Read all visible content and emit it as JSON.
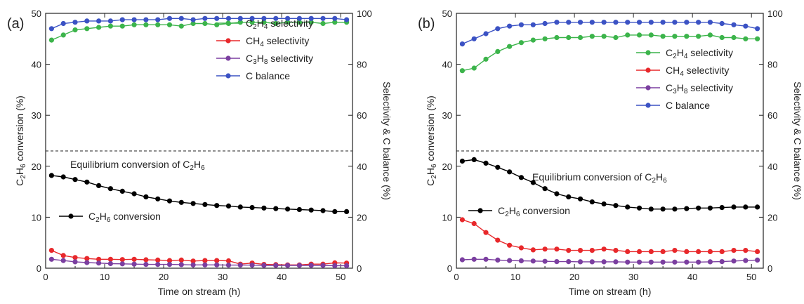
{
  "chart_data": [
    {
      "type": "line",
      "panel_label": "(a)",
      "xlabel": "Time on stream (h)",
      "ylabel": "C2H6 conversion (%)",
      "ylabel_parts": [
        [
          "C",
          ""
        ],
        [
          "2",
          "sub"
        ],
        [
          "H",
          ""
        ],
        [
          "6",
          "sub"
        ],
        [
          " conversion (%)",
          ""
        ]
      ],
      "y2label": "Selectivity & C balance (%)",
      "xlim": [
        0,
        52
      ],
      "ylim": [
        0,
        50
      ],
      "y2lim": [
        0,
        100
      ],
      "xticks": [
        "0",
        "10",
        "20",
        "30",
        "40",
        "50"
      ],
      "yticks": [
        "0",
        "10",
        "20",
        "30",
        "40",
        "50"
      ],
      "y2ticks": [
        "0",
        "20",
        "40",
        "60",
        "80",
        "100"
      ],
      "equilibrium": {
        "value": 23,
        "label": "Equilibrium conversion of C2H6",
        "label_parts": [
          [
            "Equilibrium conversion of C",
            ""
          ],
          [
            "2",
            "sub"
          ],
          [
            "H",
            ""
          ],
          [
            "6",
            "sub"
          ]
        ]
      },
      "x": [
        1,
        3,
        5,
        7,
        9,
        11,
        13,
        15,
        17,
        19,
        21,
        23,
        25,
        27,
        29,
        31,
        33,
        35,
        37,
        39,
        41,
        43,
        45,
        47,
        49,
        51
      ],
      "series": [
        {
          "name": "C2H6 conversion",
          "name_parts": [
            [
              "C",
              ""
            ],
            [
              "2",
              "sub"
            ],
            [
              "H",
              ""
            ],
            [
              "6",
              "sub"
            ],
            [
              " conversion",
              ""
            ]
          ],
          "axis": "left",
          "color": "#000000",
          "values": [
            18.2,
            17.9,
            17.4,
            16.9,
            16.2,
            15.6,
            15.1,
            14.6,
            14.0,
            13.6,
            13.2,
            12.9,
            12.7,
            12.5,
            12.3,
            12.2,
            12.0,
            11.9,
            11.8,
            11.7,
            11.6,
            11.5,
            11.4,
            11.3,
            11.1,
            11.1
          ]
        },
        {
          "name": "C2H4 selectivity",
          "name_parts": [
            [
              "C",
              ""
            ],
            [
              "2",
              "sub"
            ],
            [
              "H",
              ""
            ],
            [
              "4",
              "sub"
            ],
            [
              " selectivity",
              ""
            ]
          ],
          "axis": "right",
          "color": "#3cb44b",
          "values": [
            89.5,
            91.5,
            93.5,
            94.0,
            94.5,
            95.0,
            95.0,
            95.5,
            95.5,
            95.5,
            95.5,
            95.0,
            96.0,
            96.0,
            95.5,
            96.0,
            96.5,
            96.5,
            96.5,
            96.0,
            96.5,
            96.5,
            96.5,
            96.0,
            96.5,
            96.5
          ]
        },
        {
          "name": "CH4 selectivity",
          "name_parts": [
            [
              "CH",
              ""
            ],
            [
              "4",
              "sub"
            ],
            [
              " selectivity",
              ""
            ]
          ],
          "axis": "right",
          "color": "#e8282b",
          "values": [
            7.0,
            5.0,
            4.2,
            3.8,
            3.5,
            3.5,
            3.4,
            3.5,
            3.3,
            3.2,
            3.0,
            3.2,
            2.8,
            3.0,
            3.0,
            2.9,
            1.6,
            2.0,
            1.5,
            1.4,
            1.3,
            1.3,
            1.6,
            1.6,
            2.1,
            2.0
          ]
        },
        {
          "name": "C3H8 selectivity",
          "name_parts": [
            [
              "C",
              ""
            ],
            [
              "3",
              "sub"
            ],
            [
              "H",
              ""
            ],
            [
              "8",
              "sub"
            ],
            [
              " selectivity",
              ""
            ]
          ],
          "axis": "right",
          "color": "#7b3fa0",
          "values": [
            3.5,
            3.0,
            2.5,
            2.2,
            2.0,
            1.8,
            1.7,
            1.6,
            1.5,
            1.5,
            1.5,
            1.4,
            1.3,
            1.3,
            1.3,
            1.2,
            1.2,
            1.2,
            1.1,
            1.1,
            1.1,
            1.1,
            1.1,
            1.1,
            1.0,
            1.0
          ]
        },
        {
          "name": "C balance",
          "name_parts": [
            [
              "C balance",
              ""
            ]
          ],
          "axis": "right",
          "color": "#3b52c4",
          "values": [
            94.0,
            96.0,
            96.5,
            97.0,
            97.0,
            97.0,
            97.5,
            97.5,
            97.5,
            97.5,
            98.0,
            98.0,
            97.5,
            98.0,
            98.0,
            98.0,
            98.0,
            98.0,
            98.0,
            98.0,
            98.0,
            98.0,
            98.0,
            98.0,
            98.0,
            97.5
          ]
        }
      ]
    },
    {
      "type": "line",
      "panel_label": "(b)",
      "xlabel": "Time on stream (h)",
      "ylabel": "C2H6 conversion (%)",
      "ylabel_parts": [
        [
          "C",
          ""
        ],
        [
          "2",
          "sub"
        ],
        [
          "H",
          ""
        ],
        [
          "6",
          "sub"
        ],
        [
          " conversion (%)",
          ""
        ]
      ],
      "y2label": "Selectivity & C balance (%)",
      "xlim": [
        0,
        52
      ],
      "ylim": [
        0,
        50
      ],
      "y2lim": [
        0,
        100
      ],
      "xticks": [
        "0",
        "10",
        "20",
        "30",
        "40",
        "50"
      ],
      "yticks": [
        "0",
        "10",
        "20",
        "30",
        "40",
        "50"
      ],
      "y2ticks": [
        "0",
        "20",
        "40",
        "60",
        "80",
        "100"
      ],
      "equilibrium": {
        "value": 23,
        "label": "Equilibrium conversion of C2H6",
        "label_parts": [
          [
            "Equilibrium conversion of C",
            ""
          ],
          [
            "2",
            "sub"
          ],
          [
            "H",
            ""
          ],
          [
            "6",
            "sub"
          ]
        ]
      },
      "x": [
        1,
        3,
        5,
        7,
        9,
        11,
        13,
        15,
        17,
        19,
        21,
        23,
        25,
        27,
        29,
        31,
        33,
        35,
        37,
        39,
        41,
        43,
        45,
        47,
        49,
        51
      ],
      "series": [
        {
          "name": "C2H6 conversion",
          "name_parts": [
            [
              "C",
              ""
            ],
            [
              "2",
              "sub"
            ],
            [
              "H",
              ""
            ],
            [
              "6",
              "sub"
            ],
            [
              " conversion",
              ""
            ]
          ],
          "axis": "left",
          "color": "#000000",
          "values": [
            21.0,
            21.3,
            20.6,
            19.8,
            18.9,
            17.8,
            16.8,
            15.6,
            14.6,
            14.0,
            13.6,
            13.0,
            12.6,
            12.3,
            12.0,
            11.8,
            11.6,
            11.6,
            11.6,
            11.7,
            11.8,
            11.8,
            11.9,
            12.0,
            12.0,
            12.0
          ]
        },
        {
          "name": "C2H4 selectivity",
          "name_parts": [
            [
              "C",
              ""
            ],
            [
              "2",
              "sub"
            ],
            [
              "H",
              ""
            ],
            [
              "4",
              "sub"
            ],
            [
              " selectivity",
              ""
            ]
          ],
          "axis": "right",
          "color": "#3cb44b",
          "values": [
            77.5,
            78.5,
            82.0,
            85.0,
            87.0,
            88.5,
            89.5,
            90.0,
            90.5,
            90.5,
            90.5,
            91.0,
            91.0,
            90.5,
            91.5,
            91.5,
            91.5,
            91.0,
            91.0,
            91.0,
            91.0,
            91.5,
            90.5,
            90.5,
            90.0,
            90.0
          ]
        },
        {
          "name": "CH4 selectivity",
          "name_parts": [
            [
              "CH",
              ""
            ],
            [
              "4",
              "sub"
            ],
            [
              " selectivity",
              ""
            ]
          ],
          "axis": "right",
          "color": "#e8282b",
          "values": [
            19.0,
            17.5,
            14.0,
            11.0,
            9.0,
            8.0,
            7.2,
            7.5,
            7.5,
            7.0,
            7.0,
            7.0,
            7.5,
            7.0,
            6.5,
            6.5,
            6.5,
            6.5,
            7.0,
            6.5,
            6.5,
            6.5,
            6.5,
            7.0,
            7.0,
            6.5
          ]
        },
        {
          "name": "C3H8 selectivity",
          "name_parts": [
            [
              "C",
              ""
            ],
            [
              "3",
              "sub"
            ],
            [
              "H",
              ""
            ],
            [
              "8",
              "sub"
            ],
            [
              " selectivity",
              ""
            ]
          ],
          "axis": "right",
          "color": "#7b3fa0",
          "values": [
            3.3,
            3.5,
            3.5,
            3.2,
            3.0,
            2.9,
            2.8,
            2.7,
            2.6,
            2.6,
            2.5,
            2.5,
            2.5,
            2.5,
            2.4,
            2.4,
            2.4,
            2.4,
            2.4,
            2.4,
            2.4,
            2.5,
            2.6,
            2.8,
            3.0,
            3.2
          ]
        },
        {
          "name": "C balance",
          "name_parts": [
            [
              "C balance",
              ""
            ]
          ],
          "axis": "right",
          "color": "#3b52c4",
          "values": [
            88.0,
            90.0,
            92.0,
            94.0,
            95.0,
            95.5,
            95.5,
            96.0,
            96.5,
            96.5,
            96.5,
            96.5,
            96.5,
            96.5,
            96.5,
            96.5,
            96.5,
            96.5,
            96.5,
            96.5,
            96.5,
            96.5,
            96.0,
            95.5,
            95.0,
            94.0
          ]
        }
      ]
    }
  ]
}
